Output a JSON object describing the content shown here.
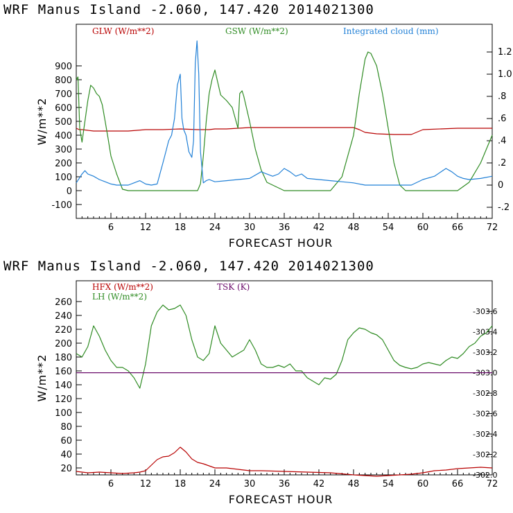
{
  "colors": {
    "red": "#b80000",
    "green": "#2e8b22",
    "blue": "#1f7fd6",
    "purple": "#6a0a6a",
    "axis": "#000000"
  },
  "chart_data": [
    {
      "type": "line",
      "title": "WRF   Manus Island  -2.060, 147.420  2014021300",
      "xlabel": "FORECAST HOUR",
      "ylabel": "W/m**2",
      "xlim": [
        0,
        72
      ],
      "ylim": [
        -200,
        1200
      ],
      "y2lim": [
        -0.3,
        1.45
      ],
      "xticks": [
        "6",
        "12",
        "18",
        "24",
        "30",
        "36",
        "42",
        "48",
        "54",
        "60",
        "66",
        "72"
      ],
      "yticks": [
        "-100",
        "0",
        "100",
        "200",
        "300",
        "400",
        "500",
        "600",
        "700",
        "800",
        "900"
      ],
      "y2ticks": [
        "-.2",
        "0",
        ".2",
        ".4",
        ".6",
        ".8",
        "1.0",
        "1.2"
      ],
      "grid": false,
      "legend_position": "top",
      "series": [
        {
          "name": "GLW (W/m**2)",
          "color": "red",
          "axis": "left",
          "x": [
            0,
            0.5,
            1,
            3,
            6,
            9,
            12,
            15,
            18,
            21,
            23,
            24,
            26,
            28,
            30,
            36,
            42,
            48,
            49,
            50,
            52,
            55,
            58,
            60,
            66,
            72
          ],
          "y": [
            450,
            440,
            440,
            430,
            430,
            430,
            440,
            440,
            445,
            440,
            440,
            445,
            445,
            450,
            455,
            455,
            455,
            455,
            440,
            420,
            410,
            405,
            405,
            440,
            450,
            450
          ]
        },
        {
          "name": "GSW (W/m**2)",
          "color": "green",
          "axis": "left",
          "x": [
            0,
            0.3,
            0.6,
            1,
            1.5,
            2,
            2.5,
            3,
            3.5,
            4,
            4.5,
            5,
            5.5,
            6,
            7,
            8,
            9,
            10,
            11,
            12,
            15,
            18,
            20,
            21,
            21.5,
            22,
            22.5,
            23,
            23.5,
            24,
            25,
            26,
            27,
            28,
            28.3,
            28.7,
            29,
            30,
            31,
            32,
            33,
            36,
            42,
            44,
            46,
            48,
            49,
            50,
            50.5,
            51,
            52,
            53,
            54,
            55,
            56,
            57,
            60,
            66,
            68,
            70,
            72
          ],
          "y": [
            800,
            820,
            450,
            350,
            500,
            650,
            760,
            740,
            700,
            680,
            620,
            500,
            380,
            250,
            120,
            10,
            0,
            0,
            0,
            0,
            0,
            0,
            0,
            0,
            50,
            250,
            500,
            700,
            800,
            870,
            690,
            650,
            600,
            450,
            700,
            720,
            680,
            500,
            300,
            150,
            60,
            0,
            0,
            0,
            100,
            400,
            700,
            950,
            1000,
            990,
            900,
            700,
            450,
            200,
            40,
            0,
            0,
            0,
            60,
            200,
            400
          ]
        },
        {
          "name": "Integrated cloud (mm)",
          "color": "blue",
          "axis": "right",
          "x": [
            0,
            0.5,
            1,
            1.5,
            2,
            3,
            4,
            5,
            6,
            7,
            8,
            9,
            10,
            11,
            12,
            13,
            14,
            15,
            15.5,
            16,
            16.5,
            17,
            17.5,
            18,
            18.3,
            18.6,
            19,
            19.5,
            20,
            20.3,
            20.6,
            20.9,
            21.2,
            21.5,
            22,
            22.5,
            23,
            24,
            26,
            28,
            30,
            32,
            34,
            35,
            36,
            37,
            38,
            39,
            40,
            42,
            44,
            46,
            48,
            50,
            52,
            54,
            56,
            58,
            60,
            62,
            64,
            65,
            66,
            67,
            68,
            70,
            72
          ],
          "y": [
            0.02,
            0.06,
            0.1,
            0.13,
            0.1,
            0.08,
            0.05,
            0.03,
            0.01,
            0,
            0,
            0,
            0.02,
            0.04,
            0.01,
            0,
            0.01,
            0.2,
            0.3,
            0.4,
            0.45,
            0.6,
            0.9,
            1.0,
            0.6,
            0.5,
            0.45,
            0.3,
            0.25,
            0.4,
            1.1,
            1.3,
            1.0,
            0.3,
            0.02,
            0.04,
            0.05,
            0.03,
            0.04,
            0.05,
            0.06,
            0.12,
            0.08,
            0.1,
            0.15,
            0.12,
            0.08,
            0.1,
            0.06,
            0.05,
            0.04,
            0.03,
            0.02,
            0,
            0,
            0,
            0,
            0,
            0.05,
            0.08,
            0.15,
            0.12,
            0.08,
            0.06,
            0.05,
            0.06,
            0.08
          ]
        }
      ]
    },
    {
      "type": "line",
      "title": "WRF   Manus Island  -2.060, 147.420  2014021300",
      "xlabel": "FORECAST HOUR",
      "ylabel": "W/m**2",
      "xlim": [
        0,
        72
      ],
      "ylim": [
        10,
        290
      ],
      "y2lim": [
        302.0,
        303.9
      ],
      "xticks": [
        "6",
        "12",
        "18",
        "24",
        "30",
        "36",
        "42",
        "48",
        "54",
        "60",
        "66",
        "72"
      ],
      "yticks": [
        "20",
        "40",
        "60",
        "80",
        "100",
        "120",
        "140",
        "160",
        "180",
        "200",
        "220",
        "240",
        "260"
      ],
      "y2ticks": [
        "302.0",
        "302.2",
        "302.4",
        "302.6",
        "302.8",
        "303.0",
        "303.2",
        "303.4",
        "303.6"
      ],
      "grid": false,
      "legend_position": "top",
      "series": [
        {
          "name": "HFX (W/m**2)",
          "color": "red",
          "axis": "left",
          "x": [
            0,
            2,
            4,
            6,
            8,
            10,
            11,
            12,
            13,
            14,
            15,
            16,
            17,
            18,
            19,
            20,
            21,
            22,
            24,
            26,
            28,
            30,
            32,
            36,
            40,
            44,
            48,
            52,
            54,
            56,
            58,
            60,
            62,
            64,
            66,
            68,
            70,
            72
          ],
          "y": [
            15,
            13,
            14,
            13,
            12,
            13,
            14,
            16,
            24,
            32,
            36,
            37,
            42,
            50,
            43,
            33,
            28,
            26,
            20,
            20,
            18,
            16,
            16,
            15,
            14,
            13,
            10,
            8,
            9,
            10,
            11,
            13,
            16,
            17,
            19,
            20,
            21,
            20
          ]
        },
        {
          "name": "LH  (W/m**2)",
          "color": "green",
          "axis": "left",
          "x": [
            0,
            1,
            2,
            3,
            4,
            5,
            6,
            7,
            8,
            9,
            10,
            11,
            12,
            13,
            14,
            15,
            16,
            17,
            18,
            19,
            20,
            21,
            22,
            23,
            24,
            25,
            26,
            27,
            28,
            29,
            30,
            31,
            32,
            33,
            34,
            35,
            36,
            37,
            38,
            39,
            40,
            41,
            42,
            43,
            44,
            45,
            46,
            47,
            48,
            49,
            50,
            51,
            52,
            53,
            54,
            55,
            56,
            57,
            58,
            59,
            60,
            61,
            62,
            63,
            64,
            65,
            66,
            67,
            68,
            69,
            70,
            71,
            72
          ],
          "y": [
            185,
            180,
            195,
            225,
            210,
            190,
            175,
            165,
            165,
            160,
            150,
            135,
            170,
            225,
            245,
            255,
            248,
            250,
            255,
            240,
            205,
            180,
            175,
            185,
            225,
            200,
            190,
            180,
            185,
            190,
            205,
            190,
            170,
            165,
            165,
            168,
            165,
            170,
            160,
            160,
            150,
            145,
            140,
            150,
            148,
            155,
            175,
            205,
            215,
            222,
            220,
            215,
            212,
            205,
            190,
            175,
            168,
            165,
            163,
            165,
            170,
            172,
            170,
            168,
            175,
            180,
            178,
            185,
            195,
            200,
            210,
            215,
            225
          ]
        },
        {
          "name": "TSK (K)",
          "color": "purple",
          "axis": "right",
          "x": [
            0,
            72
          ],
          "y": [
            303.0,
            303.0
          ]
        }
      ]
    }
  ]
}
